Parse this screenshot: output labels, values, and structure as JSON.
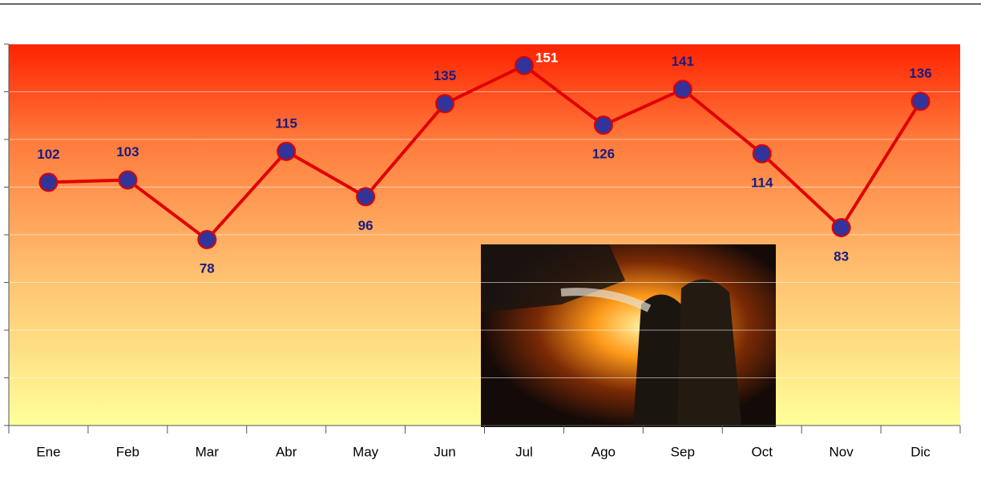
{
  "chart_data": {
    "type": "line",
    "categories": [
      "Ene",
      "Feb",
      "Mar",
      "Abr",
      "May",
      "Jun",
      "Jul",
      "Ago",
      "Sep",
      "Oct",
      "Nov",
      "Dic"
    ],
    "values": [
      102,
      103,
      78,
      115,
      96,
      135,
      151,
      126,
      141,
      114,
      83,
      136
    ],
    "color": "#e00000",
    "marker_color": "#333399",
    "ylim": [
      0,
      160
    ],
    "yticks": [
      0,
      20,
      40,
      60,
      80,
      100,
      120,
      140,
      160
    ],
    "grid": true
  }
}
